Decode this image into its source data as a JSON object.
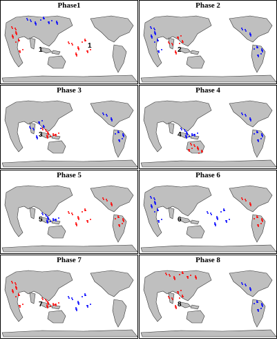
{
  "colors": {
    "positive": "#ff0000",
    "negative": "#0000ff",
    "land": "#bfbfbf",
    "coast": "#333333"
  },
  "panels": [
    {
      "title": "Phase1",
      "label": "1",
      "label2": "1",
      "dots": [
        [
          "r",
          "af"
        ],
        [
          "b",
          "eu"
        ],
        [
          "r",
          "pac"
        ]
      ]
    },
    {
      "title": "Phase 2",
      "label": "2",
      "dots": [
        [
          "b",
          "af"
        ],
        [
          "r",
          "io"
        ],
        [
          "b",
          "am"
        ]
      ]
    },
    {
      "title": "Phase 3",
      "label": "3",
      "dots": [
        [
          "b",
          "io"
        ],
        [
          "r",
          "mc"
        ],
        [
          "b",
          "am"
        ]
      ]
    },
    {
      "title": "Phase 4",
      "label": "4",
      "dots": [
        [
          "b",
          "mc"
        ],
        [
          "r",
          "au"
        ],
        [
          "b",
          "am"
        ]
      ]
    },
    {
      "title": "Phase 5",
      "label": "5",
      "dots": [
        [
          "b",
          "mc"
        ],
        [
          "r",
          "pac"
        ],
        [
          "r",
          "am"
        ]
      ]
    },
    {
      "title": "Phase 6",
      "label": "6",
      "dots": [
        [
          "b",
          "af"
        ],
        [
          "b",
          "pac"
        ],
        [
          "r",
          "am"
        ]
      ]
    },
    {
      "title": "Phase 7",
      "label": "7",
      "dots": [
        [
          "r",
          "af"
        ],
        [
          "r",
          "mc"
        ],
        [
          "b",
          "pac"
        ]
      ]
    },
    {
      "title": "Phase 8",
      "label": "8",
      "dots": [
        [
          "r",
          "eu"
        ],
        [
          "r",
          "io"
        ],
        [
          "b",
          "am"
        ]
      ]
    }
  ]
}
